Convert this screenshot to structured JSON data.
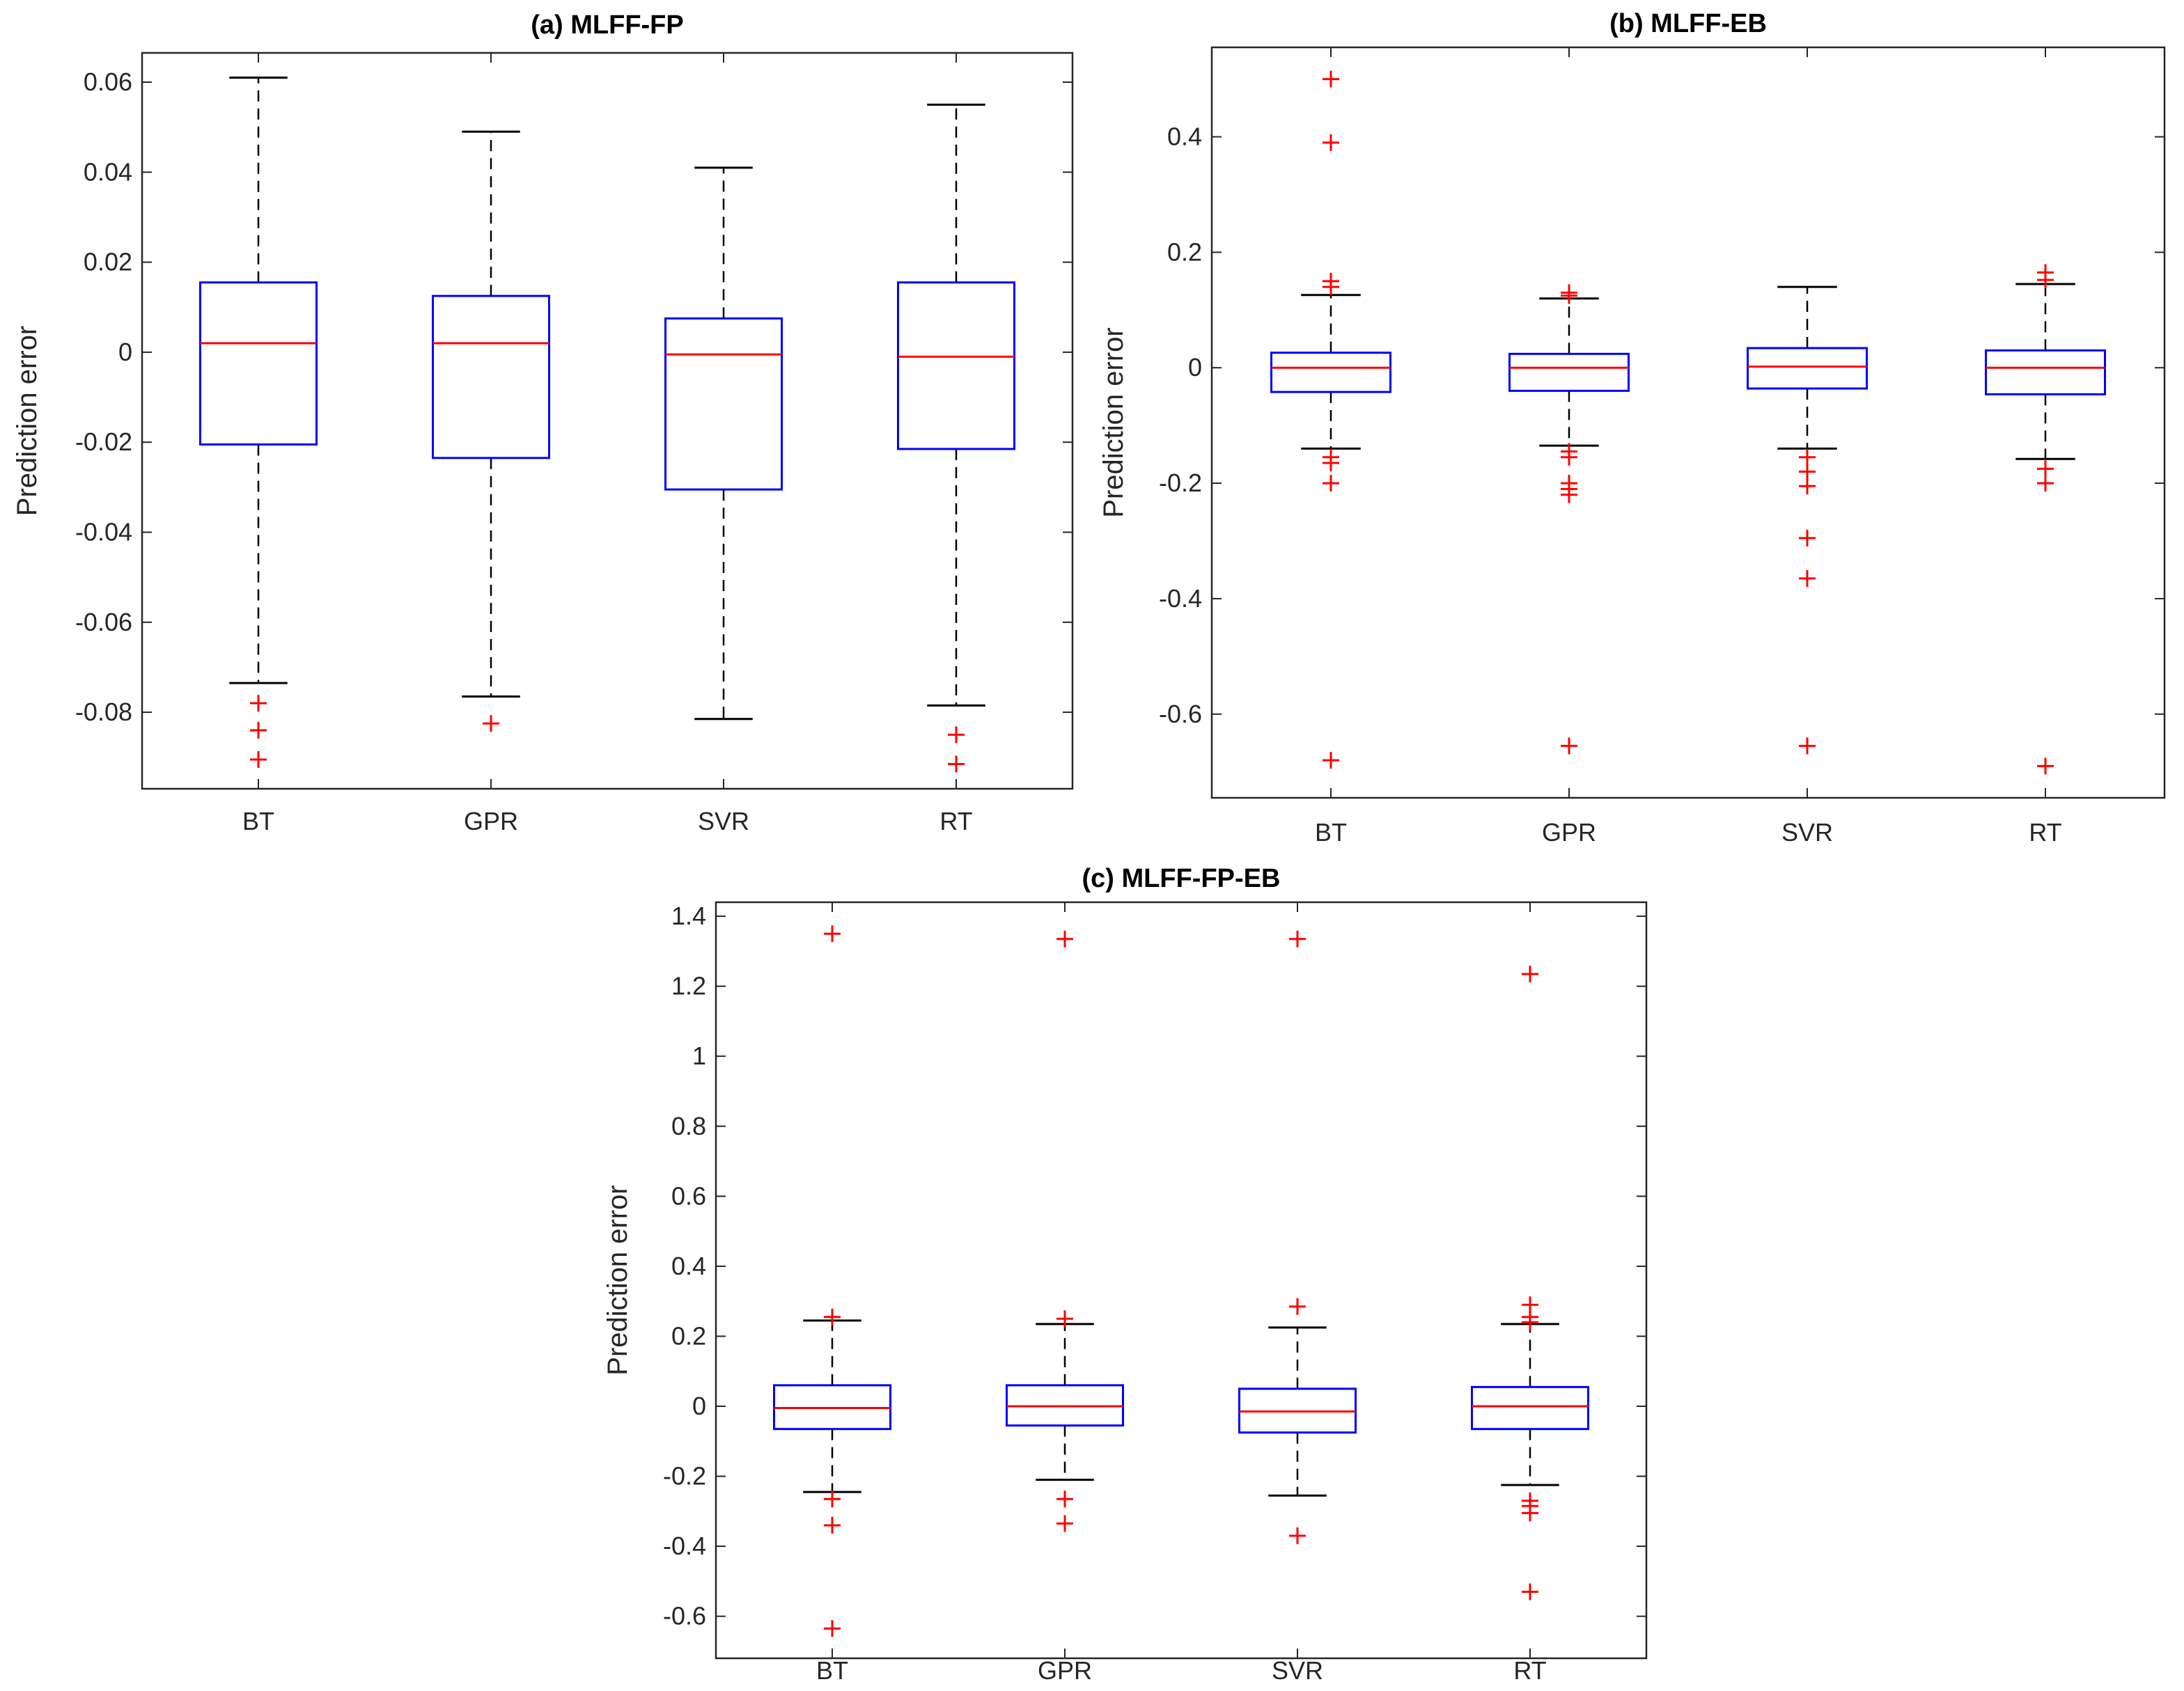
{
  "chart_data": [
    {
      "type": "boxplot",
      "id": "a",
      "title": "(a) MLFF-FP",
      "xlabel": "",
      "ylabel": "Prediction error",
      "categories": [
        "BT",
        "GPR",
        "SVR",
        "RT"
      ],
      "ylim": [
        -0.097,
        0.0665
      ],
      "yticks": [
        -0.08,
        -0.06,
        -0.04,
        -0.02,
        0,
        0.02,
        0.04,
        0.06
      ],
      "ytick_labels": [
        "-0.08",
        "-0.06",
        "-0.04",
        "-0.02",
        "0",
        "0.02",
        "0.04",
        "0.06"
      ],
      "boxes": [
        {
          "label": "BT",
          "whisker_low": -0.0735,
          "q1": -0.0205,
          "median": 0.002,
          "q3": 0.0155,
          "whisker_high": 0.061,
          "outliers": [
            -0.078,
            -0.084,
            -0.0905
          ]
        },
        {
          "label": "GPR",
          "whisker_low": -0.0765,
          "q1": -0.0235,
          "median": 0.002,
          "q3": 0.0125,
          "whisker_high": 0.049,
          "outliers": [
            -0.0825
          ]
        },
        {
          "label": "SVR",
          "whisker_low": -0.0815,
          "q1": -0.0305,
          "median": -0.0005,
          "q3": 0.0075,
          "whisker_high": 0.041,
          "outliers": []
        },
        {
          "label": "RT",
          "whisker_low": -0.0785,
          "q1": -0.0215,
          "median": -0.001,
          "q3": 0.0155,
          "whisker_high": 0.055,
          "outliers": [
            -0.085,
            -0.0915
          ]
        }
      ]
    },
    {
      "type": "boxplot",
      "id": "b",
      "title": "(b) MLFF-EB",
      "xlabel": "",
      "ylabel": "Prediction error",
      "categories": [
        "BT",
        "GPR",
        "SVR",
        "RT"
      ],
      "ylim": [
        -0.745,
        0.555
      ],
      "yticks": [
        -0.6,
        -0.4,
        -0.2,
        0,
        0.2,
        0.4
      ],
      "ytick_labels": [
        "-0.6",
        "-0.4",
        "-0.2",
        "0",
        "0.2",
        "0.4"
      ],
      "boxes": [
        {
          "label": "BT",
          "whisker_low": -0.14,
          "q1": -0.042,
          "median": 0.0,
          "q3": 0.026,
          "whisker_high": 0.126,
          "outliers": [
            0.5,
            0.39,
            0.15,
            0.14,
            -0.155,
            -0.165,
            -0.2,
            -0.68
          ]
        },
        {
          "label": "GPR",
          "whisker_low": -0.135,
          "q1": -0.04,
          "median": 0.0,
          "q3": 0.024,
          "whisker_high": 0.12,
          "outliers": [
            0.13,
            0.125,
            -0.145,
            -0.155,
            -0.2,
            -0.21,
            -0.22,
            -0.655
          ]
        },
        {
          "label": "SVR",
          "whisker_low": -0.14,
          "q1": -0.036,
          "median": 0.002,
          "q3": 0.034,
          "whisker_high": 0.14,
          "outliers": [
            -0.155,
            -0.18,
            -0.205,
            -0.295,
            -0.365,
            -0.655
          ]
        },
        {
          "label": "RT",
          "whisker_low": -0.158,
          "q1": -0.046,
          "median": 0.0,
          "q3": 0.03,
          "whisker_high": 0.145,
          "outliers": [
            0.165,
            0.152,
            -0.175,
            -0.2,
            -0.69
          ]
        }
      ]
    },
    {
      "type": "boxplot",
      "id": "c",
      "title": "(c) MLFF-FP-EB",
      "xlabel": "",
      "ylabel": "Prediction error",
      "categories": [
        "BT",
        "GPR",
        "SVR",
        "RT"
      ],
      "ylim": [
        -0.72,
        1.44
      ],
      "yticks": [
        -0.6,
        -0.4,
        -0.2,
        0,
        0.2,
        0.4,
        0.6,
        0.8,
        1,
        1.2,
        1.4
      ],
      "ytick_labels": [
        "-0.6",
        "-0.4",
        "-0.2",
        "0",
        "0.2",
        "0.4",
        "0.6",
        "0.8",
        "1",
        "1.2",
        "1.4"
      ],
      "boxes": [
        {
          "label": "BT",
          "whisker_low": -0.245,
          "q1": -0.065,
          "median": -0.005,
          "q3": 0.06,
          "whisker_high": 0.245,
          "outliers": [
            1.35,
            0.255,
            -0.265,
            -0.34,
            -0.635
          ]
        },
        {
          "label": "GPR",
          "whisker_low": -0.21,
          "q1": -0.055,
          "median": 0.0,
          "q3": 0.06,
          "whisker_high": 0.235,
          "outliers": [
            1.335,
            0.25,
            -0.265,
            -0.335
          ]
        },
        {
          "label": "SVR",
          "whisker_low": -0.255,
          "q1": -0.075,
          "median": -0.015,
          "q3": 0.05,
          "whisker_high": 0.225,
          "outliers": [
            1.335,
            0.285,
            -0.37
          ]
        },
        {
          "label": "RT",
          "whisker_low": -0.225,
          "q1": -0.065,
          "median": 0.0,
          "q3": 0.055,
          "whisker_high": 0.235,
          "outliers": [
            1.235,
            0.29,
            0.255,
            0.24,
            -0.27,
            -0.285,
            -0.305,
            -0.53
          ]
        }
      ]
    }
  ],
  "colors": {
    "box": "#0000ff",
    "median": "#ff0000",
    "outlier": "#ff0000",
    "whisker": "#000000",
    "axis": "#262626"
  }
}
